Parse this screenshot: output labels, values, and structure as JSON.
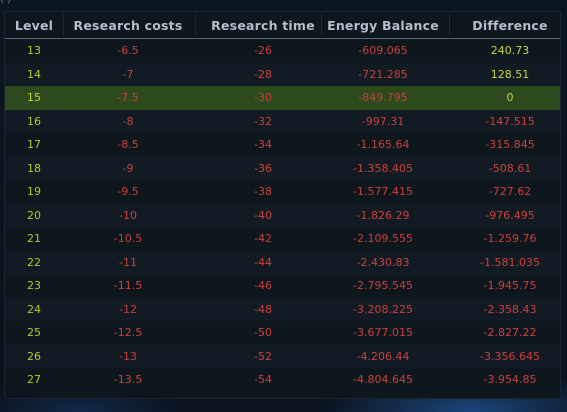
{
  "top_fragment": "(                    )                  ",
  "table": {
    "headers": [
      "Level",
      "Research costs",
      "Research time",
      "Energy Balance",
      "Difference"
    ],
    "highlight_level": "15",
    "rows": [
      {
        "level": "13",
        "cost": "-6.5",
        "time": "-26",
        "energy": "-609.065",
        "diff": "240.73"
      },
      {
        "level": "14",
        "cost": "-7",
        "time": "-28",
        "energy": "-721.285",
        "diff": "128.51"
      },
      {
        "level": "15",
        "cost": "-7.5",
        "time": "-30",
        "energy": "-849.795",
        "diff": "0"
      },
      {
        "level": "16",
        "cost": "-8",
        "time": "-32",
        "energy": "-997.31",
        "diff": "-147.515"
      },
      {
        "level": "17",
        "cost": "-8.5",
        "time": "-34",
        "energy": "-1.165.64",
        "diff": "-315.845"
      },
      {
        "level": "18",
        "cost": "-9",
        "time": "-36",
        "energy": "-1.358.405",
        "diff": "-508.61"
      },
      {
        "level": "19",
        "cost": "-9.5",
        "time": "-38",
        "energy": "-1.577.415",
        "diff": "-727.62"
      },
      {
        "level": "20",
        "cost": "-10",
        "time": "-40",
        "energy": "-1.826.29",
        "diff": "-976.495"
      },
      {
        "level": "21",
        "cost": "-10.5",
        "time": "-42",
        "energy": "-2.109.555",
        "diff": "-1.259.76"
      },
      {
        "level": "22",
        "cost": "-11",
        "time": "-44",
        "energy": "-2.430.83",
        "diff": "-1.581.035"
      },
      {
        "level": "23",
        "cost": "-11.5",
        "time": "-46",
        "energy": "-2.795.545",
        "diff": "-1.945.75"
      },
      {
        "level": "24",
        "cost": "-12",
        "time": "-48",
        "energy": "-3.208.225",
        "diff": "-2.358.43"
      },
      {
        "level": "25",
        "cost": "-12.5",
        "time": "-50",
        "energy": "-3.677.015",
        "diff": "-2.827.22"
      },
      {
        "level": "26",
        "cost": "-13",
        "time": "-52",
        "energy": "-4.206.44",
        "diff": "-3.356.645"
      },
      {
        "level": "27",
        "cost": "-13.5",
        "time": "-54",
        "energy": "-4.804.645",
        "diff": "-3.954.85"
      }
    ]
  },
  "colors": {
    "level_text": "#b5c826",
    "negative_text": "#c8403a",
    "positive_text": "#c8d43a",
    "highlight_row": "#2d4a1e",
    "header_text": "#b4bfca"
  }
}
